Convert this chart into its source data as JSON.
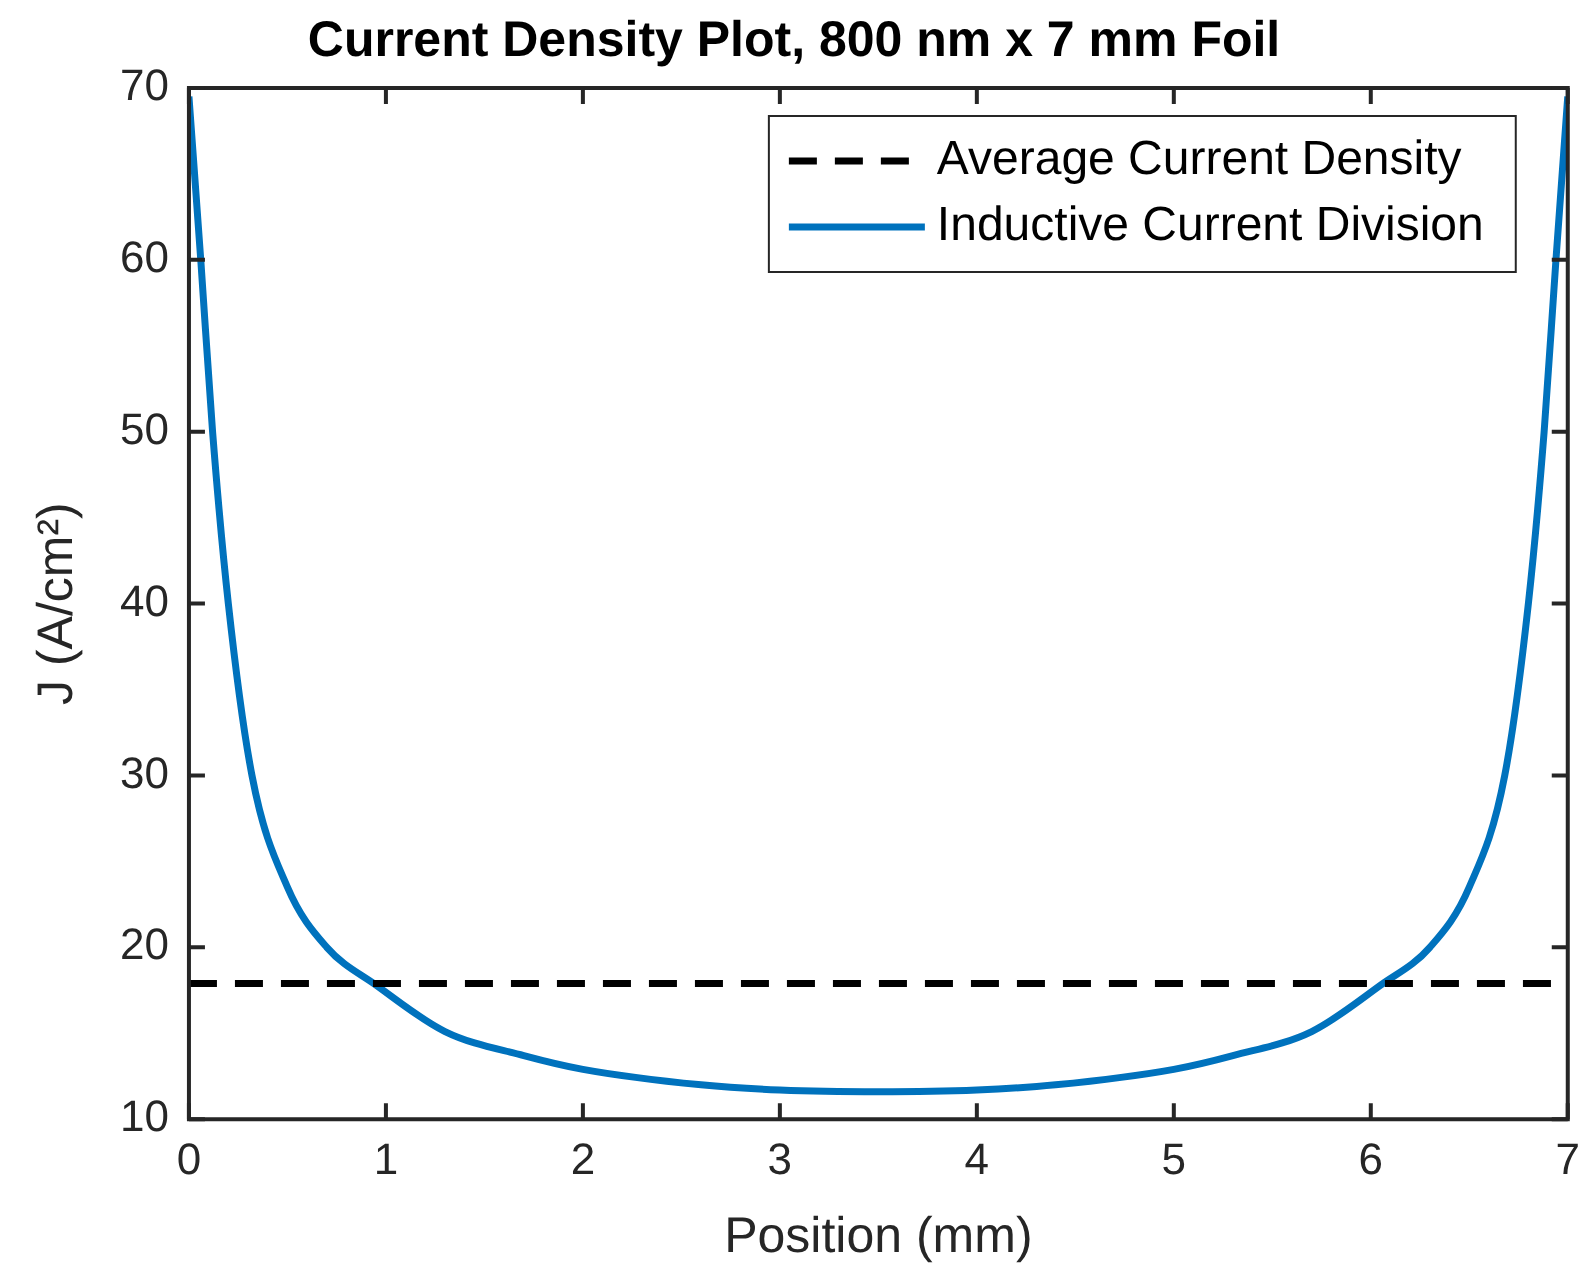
{
  "chart_data": {
    "type": "line",
    "title": "Current Density Plot, 800 nm x 7 mm Foil",
    "xlabel": "Position (mm)",
    "ylabel": "J (A/cm²)",
    "xlim": [
      0,
      7
    ],
    "xticks": [
      0,
      1,
      2,
      3,
      4,
      5,
      6,
      7
    ],
    "ylim": [
      10,
      70
    ],
    "yticks": [
      10,
      20,
      30,
      40,
      50,
      60,
      70
    ],
    "grid": false,
    "legend": "top right",
    "marker": "none",
    "series": [
      {
        "name": "Average Current Density",
        "color": "#000000",
        "line_style": "dashed",
        "x": [
          0,
          7
        ],
        "values": [
          17.9,
          17.9
        ]
      },
      {
        "name": "Inductive Current Division",
        "color": "#0072bd",
        "line_style": "solid",
        "x": [
          0,
          0.06,
          0.12,
          0.2,
          0.32,
          0.5,
          0.7,
          0.95,
          1.3,
          1.7,
          2.0,
          2.6,
          3.0,
          3.5,
          4.0,
          4.4,
          5.0,
          5.3,
          5.7,
          6.05,
          6.3,
          6.5,
          6.68,
          6.8,
          6.88,
          6.94,
          7
        ],
        "values": [
          69.5,
          60,
          50,
          40,
          30,
          23.5,
          20,
          17.8,
          15.1,
          13.7,
          12.9,
          12.0,
          11.7,
          11.6,
          11.7,
          12.0,
          12.9,
          13.7,
          15.1,
          17.8,
          20,
          23.5,
          30,
          40,
          50,
          60,
          69.5
        ]
      }
    ]
  }
}
